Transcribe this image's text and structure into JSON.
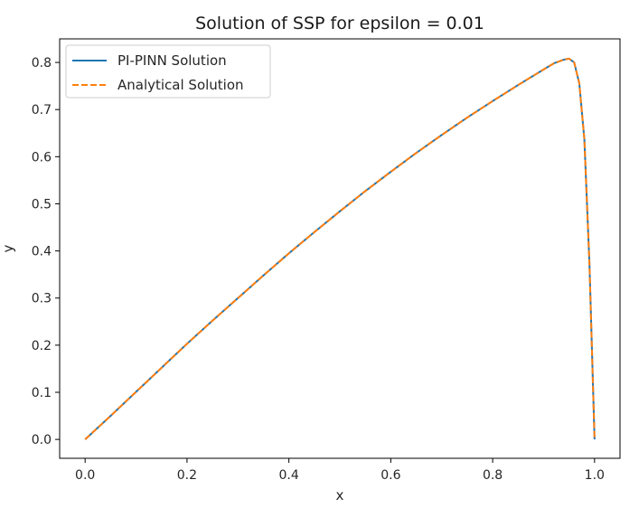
{
  "chart_data": {
    "type": "line",
    "title": "Solution of SSP for epsilon = 0.01",
    "xlabel": "x",
    "ylabel": "y",
    "xlim": [
      -0.05,
      1.05
    ],
    "ylim": [
      -0.04,
      0.85
    ],
    "xticks": [
      0.0,
      0.2,
      0.4,
      0.6,
      0.8,
      1.0
    ],
    "xtick_labels": [
      "0.0",
      "0.2",
      "0.4",
      "0.6",
      "0.8",
      "1.0"
    ],
    "yticks": [
      0.0,
      0.1,
      0.2,
      0.3,
      0.4,
      0.5,
      0.6,
      0.7,
      0.8
    ],
    "ytick_labels": [
      "0.0",
      "0.1",
      "0.2",
      "0.3",
      "0.4",
      "0.5",
      "0.6",
      "0.7",
      "0.8"
    ],
    "grid": false,
    "legend_position": "top-left",
    "series": [
      {
        "name": "PI-PINN Solution",
        "color": "#1f77b4",
        "style": "solid",
        "x": [
          0.0,
          0.05,
          0.1,
          0.15,
          0.2,
          0.25,
          0.3,
          0.35,
          0.4,
          0.45,
          0.5,
          0.55,
          0.6,
          0.65,
          0.7,
          0.75,
          0.8,
          0.85,
          0.9,
          0.92,
          0.94,
          0.95,
          0.96,
          0.97,
          0.98,
          0.99,
          1.0
        ],
        "values": [
          0.0,
          0.05,
          0.101,
          0.152,
          0.203,
          0.252,
          0.3,
          0.348,
          0.395,
          0.44,
          0.484,
          0.527,
          0.568,
          0.608,
          0.646,
          0.683,
          0.718,
          0.752,
          0.785,
          0.798,
          0.806,
          0.808,
          0.8,
          0.756,
          0.637,
          0.373,
          0.0
        ]
      },
      {
        "name": "Analytical Solution",
        "color": "#ff7f0e",
        "style": "dashed",
        "x": [
          0.0,
          0.05,
          0.1,
          0.15,
          0.2,
          0.25,
          0.3,
          0.35,
          0.4,
          0.45,
          0.5,
          0.55,
          0.6,
          0.65,
          0.7,
          0.75,
          0.8,
          0.85,
          0.9,
          0.92,
          0.94,
          0.95,
          0.96,
          0.97,
          0.98,
          0.99,
          1.0
        ],
        "values": [
          0.0,
          0.05,
          0.101,
          0.152,
          0.203,
          0.252,
          0.3,
          0.348,
          0.395,
          0.44,
          0.484,
          0.527,
          0.568,
          0.608,
          0.646,
          0.683,
          0.718,
          0.752,
          0.785,
          0.798,
          0.806,
          0.808,
          0.8,
          0.756,
          0.637,
          0.373,
          0.0
        ]
      }
    ]
  }
}
